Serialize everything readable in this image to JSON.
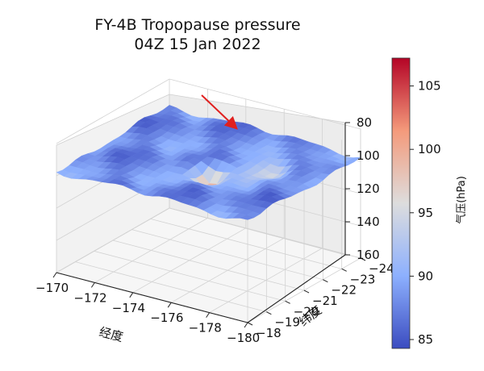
{
  "chart_data": {
    "type": "surface3d",
    "title_line1": "FY-4B Tropopause pressure",
    "title_line2": "04Z 15 Jan 2022",
    "xlabel": "经度",
    "ylabel": "纬度",
    "zlabel": "",
    "x_ticks": [
      "−170",
      "−172",
      "−174",
      "−176",
      "−178",
      "−180"
    ],
    "y_ticks": [
      "−18",
      "−19",
      "−20",
      "−21",
      "−22",
      "−23",
      "−24"
    ],
    "z_ticks": [
      "80",
      "100",
      "120",
      "140",
      "160"
    ],
    "xlim": [
      -170,
      -180
    ],
    "ylim": [
      -18,
      -24
    ],
    "zlim": [
      160,
      80
    ],
    "z_inverted": true,
    "grid": true,
    "surface": {
      "pressure_range_hPa": [
        84,
        107
      ],
      "typical_pressure_hPa": 88,
      "peak": {
        "lon": -175.5,
        "lat": -20.5,
        "pressure_hPa": 102
      },
      "notes_color_feature": "warm patch at volcanic plume location"
    },
    "annotation": {
      "type": "arrow",
      "color": "#e0201f",
      "points_to": "peak"
    },
    "colorbar": {
      "label": "气压(hPa)",
      "ticks": [
        "85",
        "90",
        "95",
        "100",
        "105"
      ],
      "range": [
        84.3,
        107.2
      ],
      "colormap": "coolwarm",
      "stops": [
        "#3b4cc0",
        "#8db0fe",
        "#dddddd",
        "#f49a7b",
        "#b40426"
      ]
    }
  }
}
